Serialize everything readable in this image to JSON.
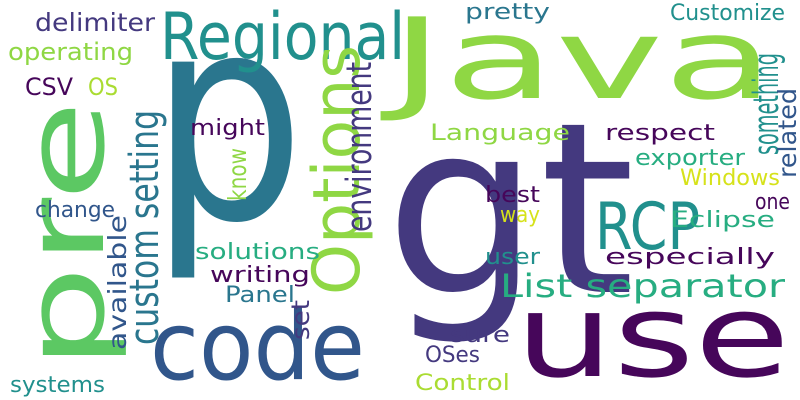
{
  "palette": {
    "dark_purple": "#46065a",
    "indigo": "#44397f",
    "blue": "#31568b",
    "teal_blue": "#2a768e",
    "teal": "#21908d",
    "green_teal": "#27ad81",
    "green": "#5cc863",
    "light_green": "#8fd744",
    "yellow_green": "#aadc32",
    "yellow": "#d6e21a"
  },
  "words": [
    {
      "text": "p",
      "color": "#2a768e",
      "rotated": false
    },
    {
      "text": "gt",
      "color": "#44397f",
      "rotated": false
    },
    {
      "text": "use",
      "color": "#46065a",
      "rotated": false
    },
    {
      "text": "Java",
      "color": "#8fd744",
      "rotated": false
    },
    {
      "text": "pre",
      "color": "#5cc863",
      "rotated": true
    },
    {
      "text": "code",
      "color": "#31568b",
      "rotated": false
    },
    {
      "text": "Regional",
      "color": "#21908d",
      "rotated": false
    },
    {
      "text": "Options",
      "color": "#8fd744",
      "rotated": true
    },
    {
      "text": "RCP",
      "color": "#21908d",
      "rotated": false
    },
    {
      "text": "custom setting",
      "color": "#2a768e",
      "rotated": true
    },
    {
      "text": "List separator",
      "color": "#27ad81",
      "rotated": false
    },
    {
      "text": "delimiter",
      "color": "#44397f",
      "rotated": false
    },
    {
      "text": "operating",
      "color": "#8fd744",
      "rotated": false
    },
    {
      "text": "pretty",
      "color": "#2a768e",
      "rotated": false
    },
    {
      "text": "Customize",
      "color": "#21908d",
      "rotated": false
    },
    {
      "text": "CSV",
      "color": "#46065a",
      "rotated": false
    },
    {
      "text": "OS",
      "color": "#aadc32",
      "rotated": false
    },
    {
      "text": "might",
      "color": "#46065a",
      "rotated": false
    },
    {
      "text": "Language",
      "color": "#8fd744",
      "rotated": false
    },
    {
      "text": "respect",
      "color": "#46065a",
      "rotated": false
    },
    {
      "text": "environment",
      "color": "#44397f",
      "rotated": true
    },
    {
      "text": "know",
      "color": "#8fd744",
      "rotated": true
    },
    {
      "text": "something",
      "color": "#21908d",
      "rotated": true
    },
    {
      "text": "related",
      "color": "#31568b",
      "rotated": true
    },
    {
      "text": "exporter",
      "color": "#27ad81",
      "rotated": false
    },
    {
      "text": "Windows",
      "color": "#d6e21a",
      "rotated": false
    },
    {
      "text": "best",
      "color": "#46065a",
      "rotated": false
    },
    {
      "text": "way",
      "color": "#d6e21a",
      "rotated": false
    },
    {
      "text": "one",
      "color": "#46065a",
      "rotated": false
    },
    {
      "text": "change",
      "color": "#31568b",
      "rotated": false
    },
    {
      "text": "Eclipse",
      "color": "#27ad81",
      "rotated": false
    },
    {
      "text": "available",
      "color": "#31568b",
      "rotated": true
    },
    {
      "text": "solutions",
      "color": "#27ad81",
      "rotated": false
    },
    {
      "text": "user",
      "color": "#21908d",
      "rotated": false
    },
    {
      "text": "especially",
      "color": "#46065a",
      "rotated": false
    },
    {
      "text": "writing",
      "color": "#46065a",
      "rotated": false
    },
    {
      "text": "Panel",
      "color": "#2a768e",
      "rotated": false
    },
    {
      "text": "set",
      "color": "#44397f",
      "rotated": true
    },
    {
      "text": "sure",
      "color": "#44397f",
      "rotated": false
    },
    {
      "text": "OSes",
      "color": "#44397f",
      "rotated": false
    },
    {
      "text": "systems",
      "color": "#21908d",
      "rotated": false
    },
    {
      "text": "Control",
      "color": "#aadc32",
      "rotated": false
    }
  ]
}
